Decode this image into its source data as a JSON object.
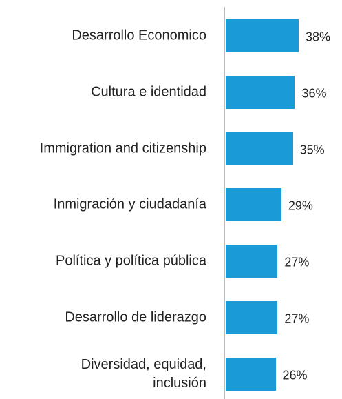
{
  "chart_data": {
    "type": "bar",
    "orientation": "horizontal",
    "categories": [
      "Desarrollo Economico",
      "Cultura e identidad",
      "Immigration and citizenship",
      "Inmigración y ciudadanía",
      "Política y política pública",
      "Desarrollo de liderazgo",
      "Diversidad, equidad, inclusión"
    ],
    "values": [
      38,
      36,
      35,
      29,
      27,
      27,
      26
    ],
    "value_labels": [
      "38%",
      "36%",
      "35%",
      "29%",
      "27%",
      "27%",
      "26%"
    ],
    "color": "#1a9ad6"
  }
}
